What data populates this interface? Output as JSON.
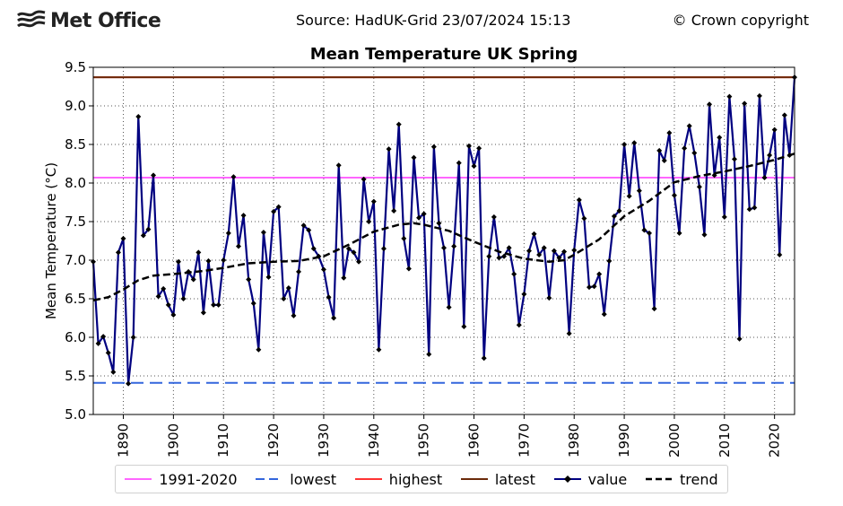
{
  "header": {
    "logo_text": "Met Office",
    "source": "Source: HadUK-Grid 23/07/2024 15:13",
    "copyright": "© Crown copyright"
  },
  "chart_data": {
    "type": "line",
    "title": "Mean Temperature UK Spring",
    "ylabel": "Mean Temperature (°C)",
    "xlabel": "",
    "xlim": [
      1884,
      2024
    ],
    "ylim": [
      5.0,
      9.5
    ],
    "yticks": [
      5.0,
      5.5,
      6.0,
      6.5,
      7.0,
      7.5,
      8.0,
      8.5,
      9.0,
      9.5
    ],
    "xticks": [
      1890,
      1900,
      1910,
      1920,
      1930,
      1940,
      1950,
      1960,
      1970,
      1980,
      1990,
      2000,
      2010,
      2020
    ],
    "grid": true,
    "legend_position": "bottom",
    "reference_lines": [
      {
        "name": "1991-2020",
        "value": 8.07,
        "color": "#ff66ff",
        "style": "solid"
      },
      {
        "name": "lowest",
        "value": 5.41,
        "color": "#3366dd",
        "style": "dashed"
      },
      {
        "name": "highest",
        "value": 9.37,
        "color": "#ff3333",
        "style": "solid"
      },
      {
        "name": "latest",
        "value": 9.37,
        "color": "#6b2a0a",
        "style": "solid"
      }
    ],
    "series": [
      {
        "name": "value",
        "color": "#000080",
        "x": [
          1884,
          1885,
          1886,
          1887,
          1888,
          1889,
          1890,
          1891,
          1892,
          1893,
          1894,
          1895,
          1896,
          1897,
          1898,
          1899,
          1900,
          1901,
          1902,
          1903,
          1904,
          1905,
          1906,
          1907,
          1908,
          1909,
          1910,
          1911,
          1912,
          1913,
          1914,
          1915,
          1916,
          1917,
          1918,
          1919,
          1920,
          1921,
          1922,
          1923,
          1924,
          1925,
          1926,
          1927,
          1928,
          1929,
          1930,
          1931,
          1932,
          1933,
          1934,
          1935,
          1936,
          1937,
          1938,
          1939,
          1940,
          1941,
          1942,
          1943,
          1944,
          1945,
          1946,
          1947,
          1948,
          1949,
          1950,
          1951,
          1952,
          1953,
          1954,
          1955,
          1956,
          1957,
          1958,
          1959,
          1960,
          1961,
          1962,
          1963,
          1964,
          1965,
          1966,
          1967,
          1968,
          1969,
          1970,
          1971,
          1972,
          1973,
          1974,
          1975,
          1976,
          1977,
          1978,
          1979,
          1980,
          1981,
          1982,
          1983,
          1984,
          1985,
          1986,
          1987,
          1988,
          1989,
          1990,
          1991,
          1992,
          1993,
          1994,
          1995,
          1996,
          1997,
          1998,
          1999,
          2000,
          2001,
          2002,
          2003,
          2004,
          2005,
          2006,
          2007,
          2008,
          2009,
          2010,
          2011,
          2012,
          2013,
          2014,
          2015,
          2016,
          2017,
          2018,
          2019,
          2020,
          2021,
          2022,
          2023,
          2024
        ],
        "values": [
          6.98,
          5.92,
          6.01,
          5.8,
          5.55,
          7.1,
          7.28,
          5.4,
          6.0,
          8.86,
          7.32,
          7.4,
          8.1,
          6.53,
          6.63,
          6.42,
          6.29,
          6.98,
          6.5,
          6.85,
          6.75,
          7.1,
          6.32,
          6.99,
          6.42,
          6.42,
          7.0,
          7.35,
          8.08,
          7.18,
          7.58,
          6.75,
          6.44,
          5.84,
          7.36,
          6.78,
          7.63,
          7.69,
          6.5,
          6.64,
          6.28,
          6.85,
          7.45,
          7.39,
          7.15,
          7.05,
          6.88,
          6.52,
          6.25,
          8.23,
          6.77,
          7.15,
          7.1,
          6.98,
          8.05,
          7.5,
          7.76,
          5.84,
          7.15,
          8.44,
          7.64,
          8.76,
          7.28,
          6.89,
          8.33,
          7.55,
          7.6,
          5.78,
          8.47,
          7.48,
          7.16,
          6.39,
          7.18,
          8.26,
          6.14,
          8.48,
          8.22,
          8.45,
          5.73,
          7.05,
          7.56,
          7.03,
          7.05,
          7.16,
          6.82,
          6.16,
          6.56,
          7.12,
          7.34,
          7.07,
          7.16,
          6.51,
          7.12,
          7.03,
          7.11,
          6.05,
          7.13,
          7.78,
          7.54,
          6.65,
          6.66,
          6.82,
          6.3,
          6.99,
          7.57,
          7.64,
          8.5,
          7.83,
          8.52,
          7.9,
          7.39,
          7.35,
          6.37,
          8.42,
          8.29,
          8.65,
          7.84,
          7.35,
          8.45,
          8.74,
          8.39,
          7.95,
          7.33,
          9.02,
          8.1,
          8.59,
          7.56,
          9.12,
          8.31,
          5.98,
          9.03,
          7.66,
          7.68,
          9.13,
          8.07,
          8.36,
          8.69,
          7.07,
          8.88,
          8.36,
          9.37
        ]
      },
      {
        "name": "trend",
        "color": "#000000",
        "x": [
          1884,
          1887,
          1890,
          1893,
          1896,
          1900,
          1903,
          1906,
          1910,
          1915,
          1920,
          1925,
          1930,
          1935,
          1940,
          1945,
          1948,
          1950,
          1955,
          1960,
          1965,
          1970,
          1975,
          1978,
          1980,
          1985,
          1990,
          1995,
          2000,
          2005,
          2010,
          2015,
          2020,
          2024
        ],
        "values": [
          6.48,
          6.52,
          6.62,
          6.74,
          6.8,
          6.82,
          6.84,
          6.86,
          6.9,
          6.96,
          6.98,
          6.99,
          7.05,
          7.2,
          7.37,
          7.46,
          7.48,
          7.46,
          7.38,
          7.24,
          7.11,
          7.02,
          6.98,
          7.0,
          7.07,
          7.27,
          7.57,
          7.77,
          8.01,
          8.09,
          8.15,
          8.22,
          8.3,
          8.38
        ]
      }
    ],
    "legend": [
      "1991-2020",
      "lowest",
      "highest",
      "latest",
      "value",
      "trend"
    ]
  }
}
